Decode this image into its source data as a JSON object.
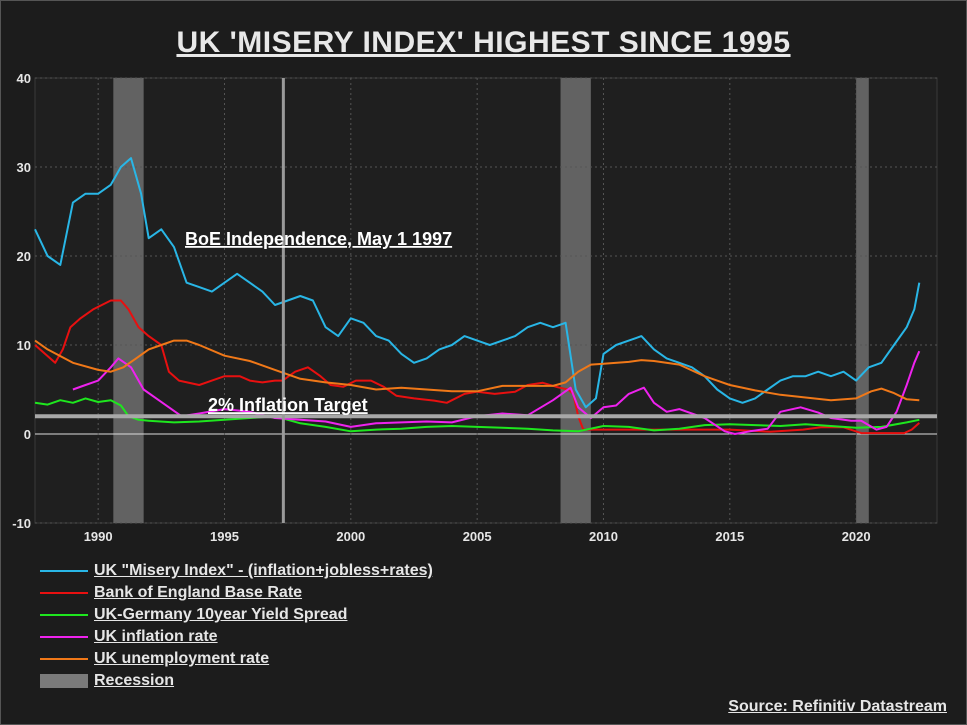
{
  "title": "UK 'MISERY INDEX' HIGHEST SINCE 1995",
  "source": "Source: Refinitiv Datastream",
  "chart_data": {
    "type": "line",
    "xlim": [
      1987.5,
      2023.2
    ],
    "ylim": [
      -10,
      40
    ],
    "y_ticks": [
      40,
      30,
      20,
      10,
      0,
      -10
    ],
    "x_ticks": [
      1990,
      1995,
      2000,
      2005,
      2010,
      2015,
      2020
    ],
    "grid": true,
    "annotations": [
      {
        "text": "BoE Independence, May 1 1997",
        "x": 1997.33
      },
      {
        "text": "2% Inflation Target",
        "y": 2
      }
    ],
    "recessions": [
      [
        1990.6,
        1991.8
      ],
      [
        2008.3,
        2009.5
      ],
      [
        2020.0,
        2020.5
      ]
    ],
    "series": [
      {
        "name": "UK \"Misery Index\" - (inflation+jobless+rates)",
        "color": "#29b6e6",
        "x": [
          1987.5,
          1988.0,
          1988.5,
          1989.0,
          1989.5,
          1990.0,
          1990.5,
          1990.9,
          1991.3,
          1991.7,
          1992.0,
          1992.5,
          1993.0,
          1993.5,
          1994.0,
          1994.5,
          1995.0,
          1995.5,
          1996.0,
          1996.5,
          1997.0,
          1997.5,
          1998.0,
          1998.5,
          1999.0,
          1999.5,
          2000.0,
          2000.5,
          2001.0,
          2001.5,
          2002.0,
          2002.5,
          2003.0,
          2003.5,
          2004.0,
          2004.5,
          2005.0,
          2005.5,
          2006.0,
          2006.5,
          2007.0,
          2007.5,
          2008.0,
          2008.5,
          2008.9,
          2009.3,
          2009.7,
          2010.0,
          2010.5,
          2011.0,
          2011.5,
          2012.0,
          2012.5,
          2013.0,
          2013.5,
          2014.0,
          2014.5,
          2015.0,
          2015.5,
          2016.0,
          2016.5,
          2017.0,
          2017.5,
          2018.0,
          2018.5,
          2019.0,
          2019.5,
          2020.0,
          2020.5,
          2021.0,
          2021.5,
          2022.0,
          2022.3,
          2022.5
        ],
        "values": [
          23,
          20,
          19,
          26,
          27,
          27,
          28,
          30,
          31,
          27,
          22,
          23,
          21,
          17,
          16.5,
          16,
          17,
          18,
          17,
          16,
          14.5,
          15,
          15.5,
          15,
          12,
          11,
          13,
          12.5,
          11,
          10.5,
          9,
          8,
          8.5,
          9.5,
          10,
          11,
          10.5,
          10,
          10.5,
          11,
          12,
          12.5,
          12,
          12.5,
          5,
          3,
          4,
          9,
          10,
          10.5,
          11,
          9.5,
          8.5,
          8,
          7.5,
          6.5,
          5,
          4,
          3.5,
          4,
          5,
          6,
          6.5,
          6.5,
          7,
          6.5,
          7,
          6,
          7.5,
          8,
          10,
          12,
          14,
          17
        ]
      },
      {
        "name": "Bank of England Base Rate",
        "color": "#e81010",
        "x": [
          1987.5,
          1987.9,
          1988.3,
          1988.6,
          1988.9,
          1989.3,
          1989.8,
          1990.5,
          1990.9,
          1991.2,
          1991.6,
          1992.0,
          1992.5,
          1992.8,
          1993.2,
          1994.0,
          1994.5,
          1995.0,
          1995.6,
          1996.0,
          1996.5,
          1997.0,
          1997.3,
          1997.8,
          1998.3,
          1998.8,
          1999.2,
          1999.7,
          2000.2,
          2000.8,
          2001.3,
          2001.8,
          2002.5,
          2003.3,
          2003.8,
          2004.5,
          2005.0,
          2005.7,
          2006.5,
          2007.0,
          2007.6,
          2008.2,
          2008.6,
          2008.8,
          2009.0,
          2009.2,
          2010.0,
          2012.0,
          2015.0,
          2016.6,
          2017.9,
          2018.6,
          2019.5,
          2020.2,
          2021.0,
          2021.9,
          2022.2,
          2022.5
        ],
        "values": [
          10,
          9,
          8,
          9.5,
          12,
          13,
          14,
          15,
          15,
          14,
          12,
          11,
          10,
          7,
          6,
          5.5,
          6,
          6.5,
          6.5,
          6,
          5.8,
          6,
          6,
          7,
          7.5,
          6.5,
          5.5,
          5.3,
          6,
          6,
          5.3,
          4.3,
          4,
          3.75,
          3.5,
          4.5,
          4.75,
          4.5,
          4.75,
          5.5,
          5.75,
          5.25,
          5,
          4.5,
          2,
          0.5,
          0.5,
          0.5,
          0.5,
          0.25,
          0.5,
          0.75,
          0.75,
          0.1,
          0.1,
          0.1,
          0.5,
          1.25
        ]
      },
      {
        "name": "UK-Germany 10year Yield Spread",
        "color": "#1ee61e",
        "x": [
          1987.5,
          1988.0,
          1988.5,
          1989.0,
          1989.5,
          1990.0,
          1990.5,
          1990.9,
          1991.2,
          1991.6,
          1992.0,
          1993.0,
          1994.0,
          1995.0,
          1996.0,
          1997.0,
          1997.5,
          1998.0,
          1999.0,
          2000.0,
          2001.0,
          2002.0,
          2003.0,
          2004.0,
          2005.0,
          2006.0,
          2007.0,
          2008.0,
          2009.0,
          2010.0,
          2011.0,
          2012.0,
          2013.0,
          2014.0,
          2015.0,
          2016.0,
          2017.0,
          2018.0,
          2019.0,
          2020.0,
          2021.0,
          2022.0,
          2022.5
        ],
        "values": [
          3.5,
          3.3,
          3.8,
          3.5,
          4,
          3.6,
          3.8,
          3.2,
          2,
          1.6,
          1.5,
          1.3,
          1.4,
          1.6,
          1.8,
          2,
          1.6,
          1.2,
          0.8,
          0.3,
          0.5,
          0.6,
          0.8,
          0.9,
          0.8,
          0.7,
          0.6,
          0.4,
          0.3,
          0.9,
          0.8,
          0.4,
          0.6,
          1,
          1.1,
          1,
          0.9,
          1.1,
          0.9,
          0.7,
          0.8,
          1.3,
          1.6
        ]
      },
      {
        "name": "UK inflation rate",
        "color": "#ee22ee",
        "x": [
          1989.0,
          1989.5,
          1990.0,
          1990.5,
          1990.8,
          1991.3,
          1991.8,
          1992.3,
          1992.8,
          1993.3,
          1994.0,
          1995.0,
          1996.0,
          1997.0,
          1998.0,
          1999.0,
          2000.0,
          2001.0,
          2002.0,
          2003.0,
          2004.0,
          2005.0,
          2006.0,
          2007.0,
          2008.0,
          2008.7,
          2009.0,
          2009.5,
          2010.0,
          2010.5,
          2011.0,
          2011.6,
          2012.0,
          2012.5,
          2013.0,
          2014.0,
          2014.8,
          2015.2,
          2015.8,
          2016.5,
          2017.0,
          2017.8,
          2018.5,
          2019.0,
          2019.8,
          2020.2,
          2020.8,
          2021.2,
          2021.6,
          2022.0,
          2022.3,
          2022.5
        ],
        "values": [
          5,
          5.5,
          6,
          7.5,
          8.5,
          7.5,
          5,
          4,
          3,
          2,
          2.3,
          2.8,
          2.5,
          1.8,
          1.6,
          1.4,
          0.8,
          1.2,
          1.3,
          1.4,
          1.3,
          2,
          2.3,
          2.1,
          3.8,
          5.2,
          3,
          1.8,
          3,
          3.2,
          4.5,
          5.2,
          3.5,
          2.5,
          2.8,
          1.8,
          0.3,
          0,
          0.3,
          0.6,
          2.5,
          3,
          2.4,
          1.8,
          1.5,
          1.5,
          0.5,
          0.8,
          2.5,
          5.5,
          8,
          9.3
        ]
      },
      {
        "name": "UK unemployment rate",
        "color": "#f07818",
        "x": [
          1987.5,
          1988.0,
          1989.0,
          1990.0,
          1990.5,
          1991.0,
          1991.5,
          1992.0,
          1992.5,
          1993.0,
          1993.5,
          1994.0,
          1995.0,
          1996.0,
          1997.0,
          1998.0,
          1999.0,
          2000.0,
          2001.0,
          2002.0,
          2003.0,
          2004.0,
          2005.0,
          2006.0,
          2007.0,
          2008.0,
          2008.5,
          2009.0,
          2009.5,
          2010.0,
          2011.0,
          2011.5,
          2012.0,
          2013.0,
          2014.0,
          2015.0,
          2016.0,
          2017.0,
          2018.0,
          2019.0,
          2020.0,
          2020.6,
          2021.0,
          2021.5,
          2022.0,
          2022.5
        ],
        "values": [
          10.5,
          9.5,
          8,
          7.2,
          7,
          7.5,
          8.5,
          9.5,
          10,
          10.5,
          10.5,
          10,
          8.8,
          8.2,
          7.2,
          6.2,
          5.8,
          5.5,
          5,
          5.2,
          5,
          4.8,
          4.8,
          5.4,
          5.4,
          5.4,
          5.8,
          7,
          7.8,
          7.9,
          8.1,
          8.3,
          8.2,
          7.8,
          6.5,
          5.5,
          4.9,
          4.4,
          4.1,
          3.8,
          4,
          4.8,
          5.1,
          4.6,
          3.9,
          3.8
        ]
      }
    ]
  },
  "legend": {
    "items": [
      {
        "label": "UK \"Misery Index\" - (inflation+jobless+rates)",
        "color": "#29b6e6"
      },
      {
        "label": "Bank of England Base Rate",
        "color": "#e81010"
      },
      {
        "label": "UK-Germany 10year Yield Spread",
        "color": "#1ee61e"
      },
      {
        "label": "UK inflation rate",
        "color": "#ee22ee"
      },
      {
        "label": "UK unemployment rate",
        "color": "#f07818"
      },
      {
        "label": "Recession",
        "color": "#7a7a7a"
      }
    ]
  }
}
